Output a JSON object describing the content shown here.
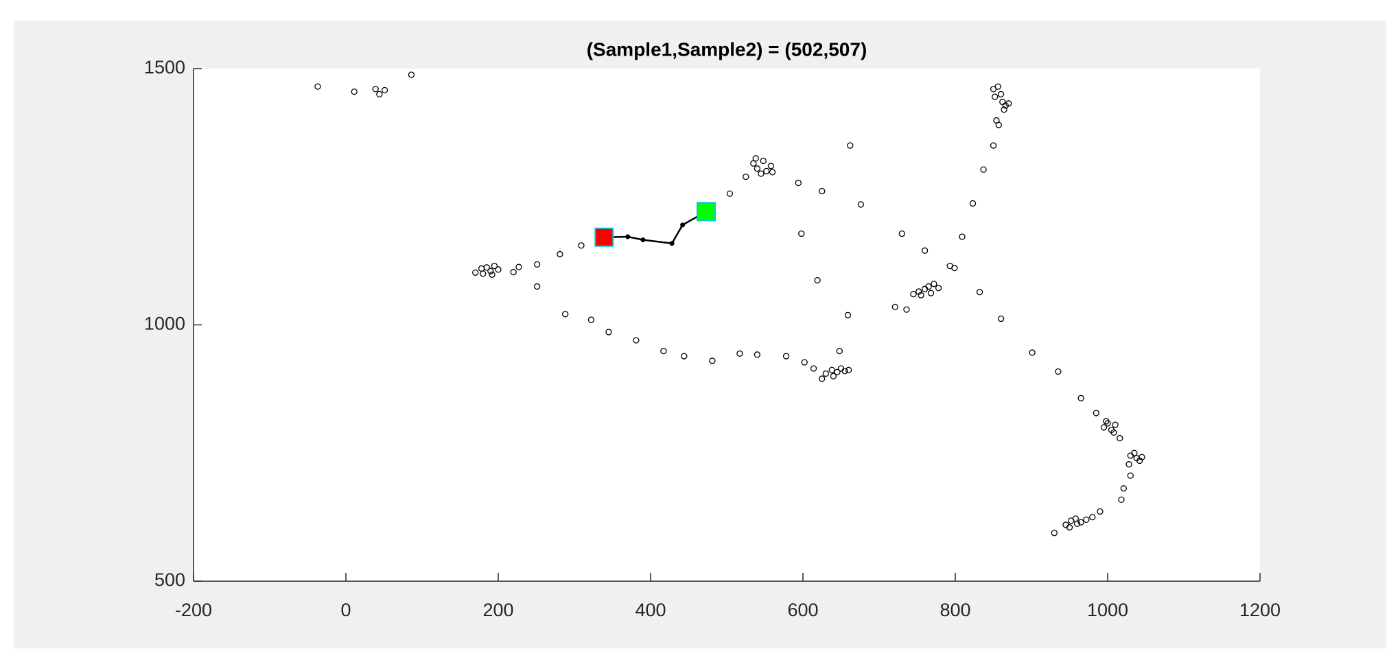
{
  "chart_data": {
    "type": "scatter",
    "title": "(Sample1,Sample2) = (502,507)",
    "xlim": [
      -200,
      1200
    ],
    "xticks": [
      -200,
      0,
      200,
      400,
      600,
      800,
      1000,
      1200
    ],
    "ylim": [
      500,
      1500
    ],
    "yticks": [
      500,
      1000,
      1500
    ],
    "color": "#000000",
    "x": [
      -37,
      11,
      39,
      44,
      51,
      86,
      180,
      185,
      190,
      195,
      178,
      192,
      200,
      170,
      220,
      227,
      251,
      251,
      281,
      309,
      288,
      322,
      345,
      381,
      417,
      444,
      481,
      517,
      540,
      578,
      602,
      614,
      630,
      638,
      645,
      650,
      655,
      640,
      660,
      625,
      648,
      659,
      619,
      598,
      535,
      540,
      548,
      552,
      558,
      545,
      560,
      538,
      525,
      504,
      594,
      625,
      676,
      662,
      730,
      760,
      721,
      736,
      745,
      752,
      760,
      765,
      772,
      778,
      755,
      768,
      793,
      799,
      809,
      823,
      837,
      850,
      850,
      856,
      860,
      862,
      866,
      870,
      864,
      852,
      854,
      857,
      832,
      860,
      901,
      935,
      965,
      985,
      995,
      1000,
      1005,
      1010,
      998,
      1008,
      1016,
      1030,
      1038,
      1042,
      1035,
      1045,
      1028,
      1030,
      1021,
      1018,
      945,
      952,
      958,
      965,
      972,
      980,
      950,
      960,
      930,
      990
    ],
    "values": [
      1465,
      1455,
      1460,
      1450,
      1458,
      1488,
      1100,
      1112,
      1105,
      1115,
      1110,
      1098,
      1108,
      1102,
      1103,
      1113,
      1118,
      1075,
      1138,
      1155,
      1021,
      1010,
      986,
      970,
      949,
      939,
      930,
      944,
      942,
      939,
      927,
      915,
      905,
      912,
      908,
      915,
      910,
      900,
      912,
      895,
      949,
      1019,
      1087,
      1178,
      1315,
      1305,
      1320,
      1300,
      1310,
      1295,
      1298,
      1325,
      1289,
      1256,
      1277,
      1261,
      1235,
      1350,
      1178,
      1145,
      1035,
      1030,
      1060,
      1065,
      1070,
      1075,
      1080,
      1072,
      1058,
      1062,
      1115,
      1111,
      1172,
      1237,
      1303,
      1350,
      1460,
      1465,
      1450,
      1435,
      1428,
      1432,
      1420,
      1445,
      1399,
      1390,
      1064,
      1012,
      946,
      909,
      857,
      828,
      800,
      808,
      795,
      805,
      812,
      790,
      779,
      745,
      740,
      735,
      750,
      742,
      728,
      706,
      681,
      659,
      610,
      618,
      622,
      615,
      620,
      625,
      605,
      612,
      594,
      636
    ],
    "path": {
      "color": "#000000",
      "x": [
        339,
        370,
        390,
        428,
        442,
        473
      ],
      "values": [
        1171,
        1172,
        1166,
        1159,
        1195,
        1221
      ]
    },
    "start": {
      "x": 339,
      "y": 1171,
      "color": "#ff0000"
    },
    "end": {
      "x": 473,
      "y": 1221,
      "color": "#00ff00"
    }
  }
}
